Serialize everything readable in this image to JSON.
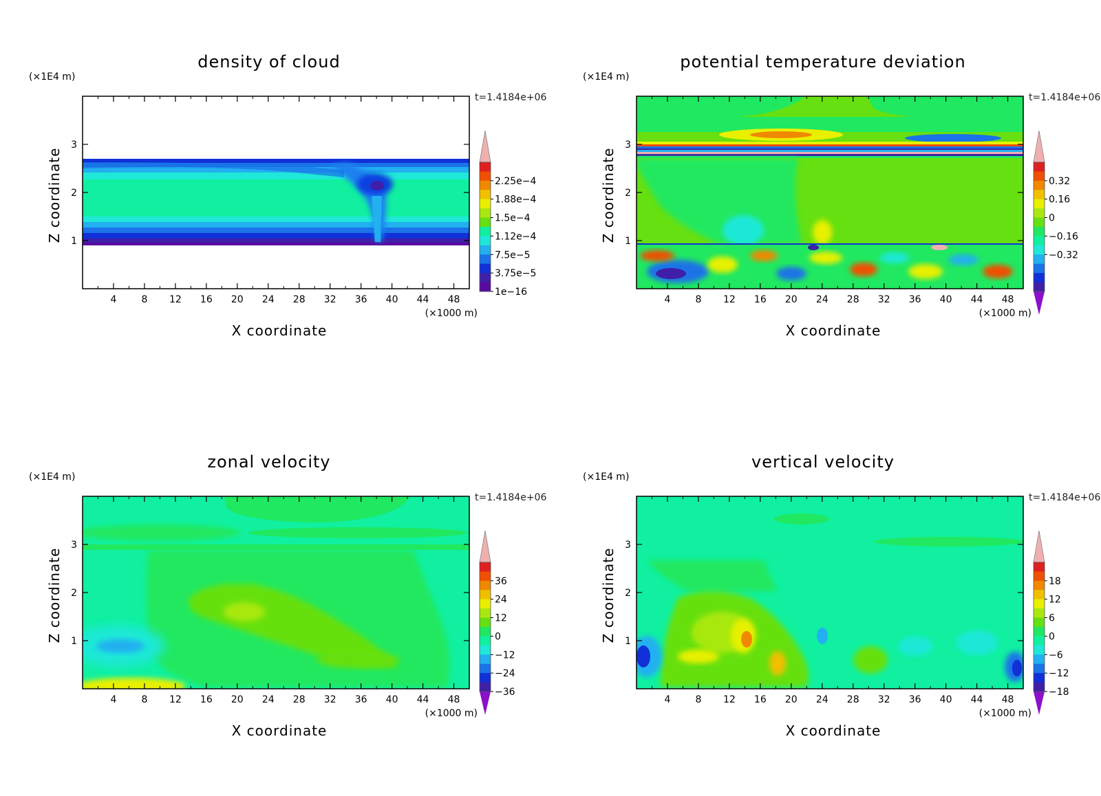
{
  "chart_data": [
    {
      "type": "heatmap",
      "title": "density of cloud",
      "xlabel": "X coordinate",
      "ylabel": "Z coordinate",
      "x_unit": "(×1000 m)",
      "y_unit": "(×1E4 m)",
      "time_label": "t=1.4184e+06",
      "x_ticks": [
        "4",
        "8",
        "12",
        "16",
        "20",
        "24",
        "28",
        "32",
        "36",
        "40",
        "44",
        "48"
      ],
      "y_ticks": [
        "1",
        "2",
        "3"
      ],
      "xlim": [
        0,
        50
      ],
      "ylim": [
        0,
        4
      ],
      "colorbar": {
        "labels": [
          "2.25e-4",
          "1.88e-4",
          "1.5e-4",
          "1.12e-4",
          "7.5e-5",
          "3.75e-5",
          "1e-16"
        ],
        "triangle_top": false,
        "triangle_bottom": false
      }
    },
    {
      "type": "heatmap",
      "title": "potential temperature deviation",
      "xlabel": "X coordinate",
      "ylabel": "Z coordinate",
      "x_unit": "(×1000 m)",
      "y_unit": "(×1E4 m)",
      "time_label": "t=1.4184e+06",
      "x_ticks": [
        "4",
        "8",
        "12",
        "16",
        "20",
        "24",
        "28",
        "32",
        "36",
        "40",
        "44",
        "48"
      ],
      "y_ticks": [
        "1",
        "2",
        "3"
      ],
      "xlim": [
        0,
        50
      ],
      "ylim": [
        0,
        4
      ],
      "colorbar": {
        "labels": [
          "0.32",
          "0.16",
          "0",
          "-0.16",
          "-0.32"
        ],
        "triangle_top": true,
        "triangle_bottom": true
      }
    },
    {
      "type": "heatmap",
      "title": "zonal velocity",
      "xlabel": "X coordinate",
      "ylabel": "Z coordinate",
      "x_unit": "(×1000 m)",
      "y_unit": "(×1E4 m)",
      "time_label": "t=1.4184e+06",
      "x_ticks": [
        "4",
        "8",
        "12",
        "16",
        "20",
        "24",
        "28",
        "32",
        "36",
        "40",
        "44",
        "48"
      ],
      "y_ticks": [
        "1",
        "2",
        "3"
      ],
      "xlim": [
        0,
        50
      ],
      "ylim": [
        0,
        4
      ],
      "colorbar": {
        "labels": [
          "36",
          "24",
          "12",
          "0",
          "-12",
          "-24",
          "-36"
        ],
        "triangle_top": true,
        "triangle_bottom": true
      }
    },
    {
      "type": "heatmap",
      "title": "vertical velocity",
      "xlabel": "X coordinate",
      "ylabel": "Z coordinate",
      "x_unit": "(×1000 m)",
      "y_unit": "(×1E4 m)",
      "time_label": "t=1.4184e+06",
      "x_ticks": [
        "4",
        "8",
        "12",
        "16",
        "20",
        "24",
        "28",
        "32",
        "36",
        "40",
        "44",
        "48"
      ],
      "y_ticks": [
        "1",
        "2",
        "3"
      ],
      "xlim": [
        0,
        50
      ],
      "ylim": [
        0,
        4
      ],
      "colorbar": {
        "labels": [
          "18",
          "12",
          "6",
          "0",
          "-6",
          "-12",
          "-18"
        ],
        "triangle_top": true,
        "triangle_bottom": true
      }
    }
  ],
  "colors": {
    "palette": [
      "#8b10c8",
      "#3f1fa8",
      "#1030d8",
      "#1a73e8",
      "#22b0f0",
      "#1fe8d8",
      "#10f0a0",
      "#20e860",
      "#66e010",
      "#a8e810",
      "#e8f000",
      "#f0c000",
      "#f08800",
      "#f05000",
      "#e02020",
      "#f0b0b0"
    ],
    "cloud_palette": [
      "#5a0aa0",
      "#1a20b0",
      "#1040e0",
      "#1a80f0",
      "#20c0f0",
      "#18e8c8",
      "#10f0a0"
    ]
  }
}
